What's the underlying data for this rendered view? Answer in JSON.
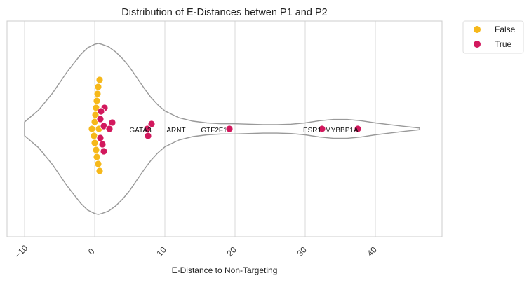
{
  "chart_data": {
    "type": "violin-swarm",
    "title": "Distribution of E-Distances betwen P1 and P2",
    "xlabel": "E-Distance to Non-Targeting",
    "ylabel": "",
    "xlim": [
      -12.5,
      49.5
    ],
    "xticks": [
      -10,
      0,
      10,
      20,
      30,
      40
    ],
    "xtick_labels": [
      "−10",
      "0",
      "10",
      "20",
      "30",
      "40"
    ],
    "grid": "vertical",
    "legend_position": "outside-top-right",
    "colors": {
      "False": "#f6b81a",
      "True": "#d2185d",
      "violin_edge": "#999999",
      "grid": "#d8d8d8",
      "frame": "#cccccc"
    },
    "series": [
      {
        "name": "False",
        "points": [
          {
            "x": 0.7,
            "offset": -7
          },
          {
            "x": 0.5,
            "offset": -6
          },
          {
            "x": 0.4,
            "offset": -5
          },
          {
            "x": 0.3,
            "offset": -4
          },
          {
            "x": 0.2,
            "offset": -3
          },
          {
            "x": 0.1,
            "offset": -2
          },
          {
            "x": 0.0,
            "offset": -1
          },
          {
            "x": -0.4,
            "offset": 0
          },
          {
            "x": 0.6,
            "offset": 0
          },
          {
            "x": -0.1,
            "offset": 1
          },
          {
            "x": 0.0,
            "offset": 2
          },
          {
            "x": 0.2,
            "offset": 3
          },
          {
            "x": 0.3,
            "offset": 4
          },
          {
            "x": 0.5,
            "offset": 5
          },
          {
            "x": 0.7,
            "offset": 6
          }
        ]
      },
      {
        "name": "True",
        "points": [
          {
            "x": 1.4,
            "offset": -3
          },
          {
            "x": 0.9,
            "offset": -2.5
          },
          {
            "x": 0.8,
            "offset": -1.4
          },
          {
            "x": 2.5,
            "offset": -0.9
          },
          {
            "x": 1.3,
            "offset": -0.4
          },
          {
            "x": 2.1,
            "offset": 0
          },
          {
            "x": 0.8,
            "offset": 1.3
          },
          {
            "x": 1.1,
            "offset": 2.2
          },
          {
            "x": 1.3,
            "offset": 3.2
          },
          {
            "x": 8.1,
            "offset": -0.7
          },
          {
            "x": 7.5,
            "offset": 0
          },
          {
            "x": 7.6,
            "offset": 1
          },
          {
            "x": 19.2,
            "offset": 0
          },
          {
            "x": 32.4,
            "offset": 0
          },
          {
            "x": 37.5,
            "offset": 0
          }
        ]
      }
    ],
    "annotations": [
      {
        "text": "GATA3",
        "x": 6.5
      },
      {
        "text": "ARNT",
        "x": 11.6
      },
      {
        "text": "GTF2F1",
        "x": 17.0
      },
      {
        "text": "ESR1",
        "x": 31.0
      },
      {
        "text": "MYBBP1A",
        "x": 35.2
      }
    ],
    "violin": {
      "x": [
        -10,
        -8,
        -6,
        -4,
        -2,
        -1,
        0,
        0.5,
        1,
        2,
        3,
        4,
        5,
        6,
        7,
        8,
        9,
        10,
        12,
        14,
        16,
        18,
        20,
        22,
        24,
        26,
        28,
        30,
        32,
        34,
        36,
        38,
        40,
        42,
        44,
        46.3
      ],
      "density": [
        0.08,
        0.22,
        0.42,
        0.66,
        0.87,
        0.95,
        0.99,
        1.0,
        0.99,
        0.96,
        0.9,
        0.82,
        0.72,
        0.6,
        0.48,
        0.37,
        0.28,
        0.21,
        0.13,
        0.09,
        0.07,
        0.06,
        0.06,
        0.055,
        0.05,
        0.05,
        0.055,
        0.07,
        0.095,
        0.11,
        0.11,
        0.095,
        0.07,
        0.05,
        0.03,
        0.01
      ]
    }
  }
}
